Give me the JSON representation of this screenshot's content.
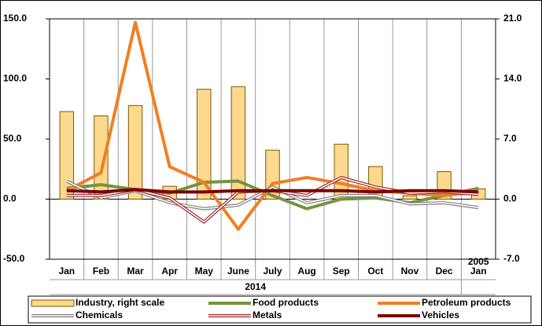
{
  "chart_data": {
    "type": "bar-line",
    "categories": [
      "Jan",
      "Feb",
      "Mar",
      "Apr",
      "May",
      "June",
      "July",
      "Aug",
      "Sep",
      "Oct",
      "Nov",
      "Dec",
      "Jan"
    ],
    "x_groups": [
      "2014",
      "2005"
    ],
    "ylim": [
      -50,
      150
    ],
    "yticks": [
      {
        "value": -50,
        "label": "-50.0"
      },
      {
        "value": 0,
        "label": "0.0"
      },
      {
        "value": 50,
        "label": "50.0"
      },
      {
        "value": 100,
        "label": "100.0"
      },
      {
        "value": 150,
        "label": "150.0"
      }
    ],
    "y2lim": [
      -7,
      21
    ],
    "y2ticks": [
      {
        "value": -7,
        "label": "-7.0"
      },
      {
        "value": 0,
        "label": "0.0"
      },
      {
        "value": 7,
        "label": "7.0"
      },
      {
        "value": 14,
        "label": "14.0"
      },
      {
        "value": 21,
        "label": "21.0"
      }
    ],
    "series": [
      {
        "name": "Industry, right scale",
        "kind": "bar",
        "axis": "y2",
        "color": "#fcd98e",
        "values": [
          10.2,
          9.7,
          10.9,
          1.5,
          12.8,
          13.1,
          5.7,
          0,
          6.4,
          3.8,
          0.4,
          3.2,
          1.2
        ]
      },
      {
        "name": "Food products",
        "kind": "line",
        "color": "#77933c",
        "values": [
          9,
          12,
          8,
          5,
          14,
          15,
          3,
          -8,
          0,
          1,
          -3,
          3,
          9
        ]
      },
      {
        "name": "Petroleum products",
        "kind": "line",
        "color": "#f07f22",
        "values": [
          7,
          22,
          147,
          27,
          14,
          -25,
          13,
          18,
          13,
          7,
          5,
          3,
          6
        ]
      },
      {
        "name": "Chemicals",
        "kind": "line",
        "style": "double",
        "color": "#808080",
        "values": [
          15,
          1,
          7,
          -3,
          -8,
          -5,
          10,
          -3,
          3,
          3,
          -4,
          -3,
          -7
        ]
      },
      {
        "name": "Metals",
        "kind": "line",
        "style": "double",
        "color": "#a0282b",
        "values": [
          3,
          3,
          8,
          1,
          -19,
          6,
          7,
          3,
          18,
          10,
          5,
          6,
          4
        ]
      },
      {
        "name": "Vehicles",
        "kind": "line",
        "color": "#7b0000",
        "values": [
          7,
          6,
          8,
          6,
          6,
          7,
          7,
          7,
          7,
          6,
          7,
          7,
          6
        ]
      }
    ]
  }
}
